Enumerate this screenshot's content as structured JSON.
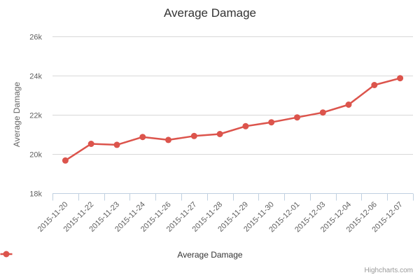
{
  "header": {
    "title": "Average Damage"
  },
  "chart_data": {
    "type": "line",
    "title": "Average Damage",
    "xlabel": "",
    "ylabel": "Average Damage",
    "categories": [
      "2015-11-20",
      "2015-11-22",
      "2015-11-23",
      "2015-11-24",
      "2015-11-26",
      "2015-11-27",
      "2015-11-28",
      "2015-11-29",
      "2015-11-30",
      "2015-12-01",
      "2015-12-03",
      "2015-12-04",
      "2015-12-06",
      "2015-12-07"
    ],
    "series": [
      {
        "name": "Average Damage",
        "color": "#dc544c",
        "values": [
          19650,
          20500,
          20450,
          20850,
          20700,
          20900,
          21000,
          21400,
          21600,
          21850,
          22100,
          22500,
          23500,
          23850
        ]
      }
    ],
    "ylim": [
      18000,
      26000
    ],
    "y_tick_interval": 2000,
    "y_tick_labels": [
      "18k",
      "20k",
      "22k",
      "24k",
      "26k"
    ],
    "grid": true,
    "x_label_rotation": -45,
    "legend_position": "bottom"
  },
  "legend": {
    "items": [
      {
        "label": "Average Damage",
        "color": "#dc544c"
      }
    ]
  },
  "credits": {
    "label": "Highcharts.com"
  },
  "colors": {
    "series": "#dc544c",
    "grid": "#d8d8d8",
    "axis_line": "#c0d0e0",
    "tick_label": "#606060",
    "axis_title": "#666666",
    "title": "#333333",
    "legend_text": "#333333",
    "credits_text": "#999999",
    "background": "#ffffff"
  }
}
